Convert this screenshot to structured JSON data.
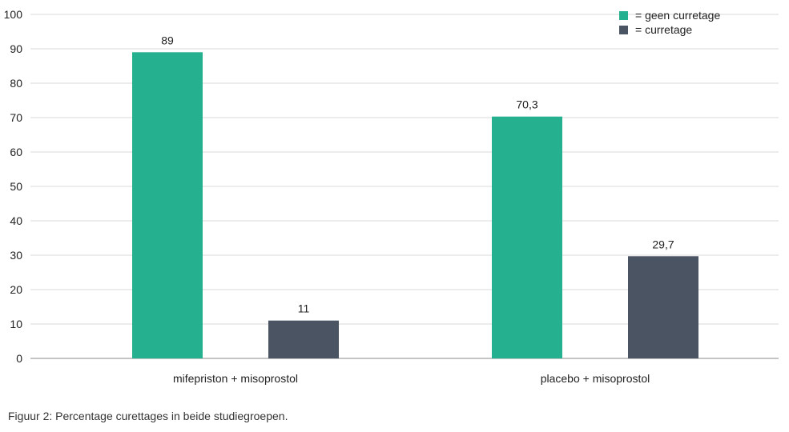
{
  "caption": "Figuur 2: Percentage curettages in beide studiegroepen.",
  "colors": {
    "geen_curretage": "#25b08f",
    "curretage": "#4a5463",
    "grid": "#d9d9d9",
    "axis": "#888888"
  },
  "chart_data": {
    "type": "bar",
    "categories": [
      "mifepriston + misoprostol",
      "placebo + misoprostol"
    ],
    "series": [
      {
        "name": "= geen curretage",
        "values": [
          89,
          70.3
        ],
        "labels": [
          "89",
          "70,3"
        ]
      },
      {
        "name": "= curretage",
        "values": [
          11,
          29.7
        ],
        "labels": [
          "11",
          "29,7"
        ]
      }
    ],
    "yticks": [
      "0",
      "10",
      "20",
      "30",
      "40",
      "50",
      "60",
      "70",
      "80",
      "90",
      "100"
    ],
    "ylim": [
      0,
      100
    ],
    "grid": true,
    "legend": "top-right",
    "title": "",
    "xlabel": "",
    "ylabel": ""
  }
}
